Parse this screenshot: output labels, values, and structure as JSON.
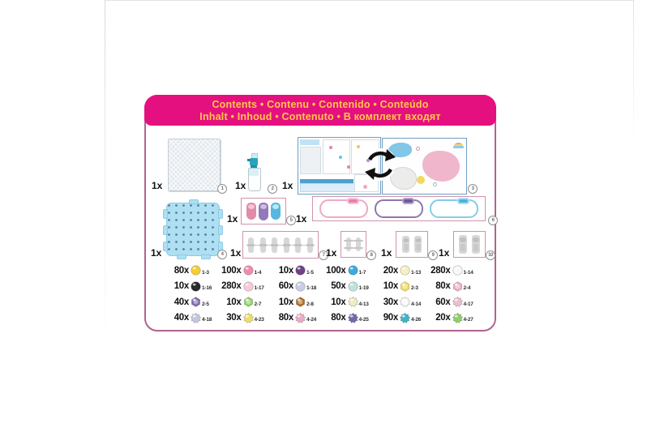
{
  "header": {
    "line1": "Contents • Contenu • Contenido • Conteúdo",
    "line2": "Inhalt • Inhoud • Contenuto • В комплект входят"
  },
  "colors": {
    "header_bg": "#E5107F",
    "header_text": "#FFC845",
    "card_border": "#B2638F",
    "item_box_border": "#CF94AD"
  },
  "items": [
    {
      "qty": "1x",
      "num": "1"
    },
    {
      "qty": "1x",
      "num": "2"
    },
    {
      "qty": "1x",
      "num": "3"
    },
    {
      "qty": "1x",
      "num": "4"
    },
    {
      "qty": "1x",
      "num": "5"
    },
    {
      "qty": "1x",
      "num": "6"
    },
    {
      "qty": "1x",
      "num": "7"
    },
    {
      "qty": "1x",
      "num": "8"
    },
    {
      "qty": "1x",
      "num": "9"
    },
    {
      "qty": "1x",
      "num": "10"
    }
  ],
  "beads": {
    "cells": [
      {
        "qty": "80x",
        "code": "1-3",
        "shape": "round",
        "color": "#F5CE2F"
      },
      {
        "qty": "100x",
        "code": "1-4",
        "shape": "round",
        "color": "#EF8CB1"
      },
      {
        "qty": "10x",
        "code": "1-5",
        "shape": "round",
        "color": "#6F4288"
      },
      {
        "qty": "100x",
        "code": "1-7",
        "shape": "round",
        "color": "#3EA9DE"
      },
      {
        "qty": "20x",
        "code": "1-13",
        "shape": "round",
        "color": "#F5EFC3"
      },
      {
        "qty": "280x",
        "code": "1-14",
        "shape": "round",
        "color": "#F8F8F6"
      },
      {
        "qty": "10x",
        "code": "1-16",
        "shape": "round",
        "color": "#2B2B2B"
      },
      {
        "qty": "280x",
        "code": "1-17",
        "shape": "round",
        "color": "#F7C9DA"
      },
      {
        "qty": "60x",
        "code": "1-18",
        "shape": "round",
        "color": "#C8CEE7"
      },
      {
        "qty": "50x",
        "code": "1-19",
        "shape": "round",
        "color": "#C1E1DB"
      },
      {
        "qty": "10x",
        "code": "2-3",
        "shape": "jewel",
        "color": "#F1DD54"
      },
      {
        "qty": "80x",
        "code": "2-4",
        "shape": "jewel",
        "color": "#ECADC5"
      },
      {
        "qty": "40x",
        "code": "2-5",
        "shape": "jewel",
        "color": "#7E6AAF"
      },
      {
        "qty": "10x",
        "code": "2-7",
        "shape": "jewel",
        "color": "#8FD362"
      },
      {
        "qty": "10x",
        "code": "2-8",
        "shape": "jewel",
        "color": "#AF6E22"
      },
      {
        "qty": "10x",
        "code": "4-13",
        "shape": "star",
        "color": "#F1EBC3"
      },
      {
        "qty": "30x",
        "code": "4-14",
        "shape": "star",
        "color": "#FBFBF9"
      },
      {
        "qty": "60x",
        "code": "4-17",
        "shape": "star",
        "color": "#EBBFD1"
      },
      {
        "qty": "40x",
        "code": "4-18",
        "shape": "star",
        "color": "#C5C7DF"
      },
      {
        "qty": "30x",
        "code": "4-23",
        "shape": "star",
        "color": "#F0DF67"
      },
      {
        "qty": "80x",
        "code": "4-24",
        "shape": "star",
        "color": "#EFAAC5"
      },
      {
        "qty": "80x",
        "code": "4-25",
        "shape": "star",
        "color": "#7467AB"
      },
      {
        "qty": "90x",
        "code": "4-26",
        "shape": "star",
        "color": "#3DB4C7"
      },
      {
        "qty": "20x",
        "code": "4-27",
        "shape": "star",
        "color": "#8ECF6A"
      }
    ]
  }
}
